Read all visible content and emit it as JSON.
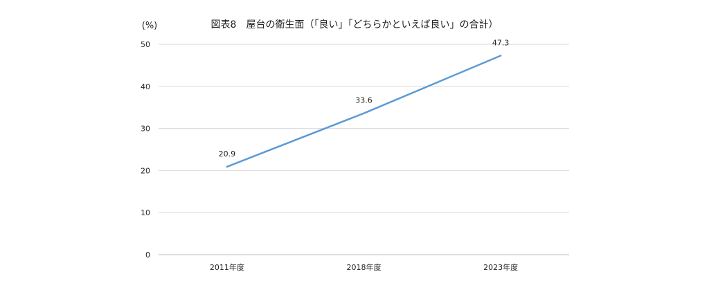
{
  "chart_data": {
    "type": "line",
    "title": "図表8　屋台の衛生面（「良い」「どちらかといえば良い」の合計）",
    "ylabel": "(%)",
    "xlabel": "",
    "categories": [
      "2011年度",
      "2018年度",
      "2023年度"
    ],
    "series": [
      {
        "values": [
          20.9,
          33.6,
          47.3
        ],
        "data_labels": [
          "20.9",
          "33.6",
          "47.3"
        ],
        "color": "#5b9bd5"
      }
    ],
    "ylim": [
      0,
      50
    ],
    "yticks": [
      0,
      10,
      20,
      30,
      40,
      50
    ],
    "ytick_labels": [
      "0",
      "10",
      "20",
      "30",
      "40",
      "50"
    ],
    "grid": true,
    "legend": "none"
  }
}
